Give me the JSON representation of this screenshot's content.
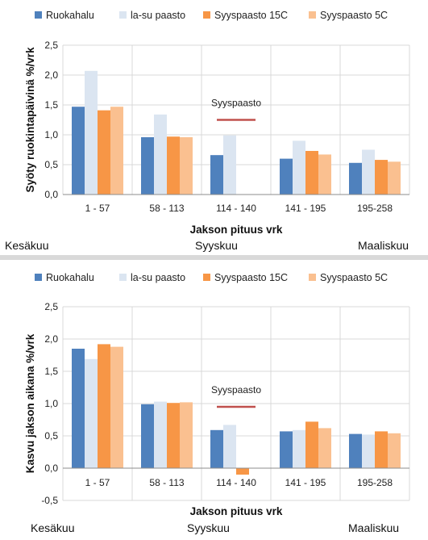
{
  "colors": {
    "Ruokahalu": "#4f81bd",
    "la-su paasto": "#dbe5f1",
    "Syyspaasto 15C": "#f79646",
    "Syyspaasto 5C": "#fac090",
    "annotation_line": "#c0504d",
    "grid": "#d9d9d9"
  },
  "chart_data": [
    {
      "type": "bar",
      "title": "",
      "xlabel": "Jakson pituus vrk",
      "ylabel": "Syöty ruokintapäivinä %/vrk",
      "categories": [
        "1 - 57",
        "58 - 113",
        "114 - 140",
        "141 - 195",
        "195-258"
      ],
      "series": [
        {
          "name": "Ruokahalu",
          "values": [
            1.47,
            0.96,
            0.66,
            0.6,
            0.53
          ]
        },
        {
          "name": "la-su paasto",
          "values": [
            2.07,
            1.34,
            0.99,
            0.9,
            0.75
          ]
        },
        {
          "name": "Syyspaasto 15C",
          "values": [
            1.41,
            0.97,
            null,
            0.73,
            0.58
          ]
        },
        {
          "name": "Syyspaasto 5C",
          "values": [
            1.47,
            0.96,
            null,
            0.67,
            0.55
          ]
        }
      ],
      "ylim": [
        0,
        2.5
      ],
      "yticks": [
        "0,0",
        "0,5",
        "1,0",
        "1,5",
        "2,0",
        "2,5"
      ],
      "grid": true,
      "legend": "top",
      "annotation": {
        "text": "Syyspaasto",
        "category_index": 2,
        "y": 1.25
      },
      "months": [
        "Kesäkuu",
        "Syyskuu",
        "Maaliskuu"
      ]
    },
    {
      "type": "bar",
      "title": "",
      "xlabel": "Jakson pituus vrk",
      "ylabel": "Kasvu jakson aikana %/vrk",
      "categories": [
        "1 - 57",
        "58 - 113",
        "114 - 140",
        "141 - 195",
        "195-258"
      ],
      "series": [
        {
          "name": "Ruokahalu",
          "values": [
            1.85,
            0.99,
            0.59,
            0.57,
            0.53
          ]
        },
        {
          "name": "la-su paasto",
          "values": [
            1.69,
            1.03,
            0.67,
            0.59,
            0.52
          ]
        },
        {
          "name": "Syyspaasto 15C",
          "values": [
            1.92,
            1.01,
            -0.1,
            0.72,
            0.57
          ]
        },
        {
          "name": "Syyspaasto 5C",
          "values": [
            1.88,
            1.02,
            null,
            0.62,
            0.54
          ]
        }
      ],
      "ylim": [
        -0.5,
        2.5
      ],
      "yticks": [
        "-0,5",
        "0,0",
        "0,5",
        "1,0",
        "1,5",
        "2,0",
        "2,5"
      ],
      "grid": true,
      "legend": "top",
      "annotation": {
        "text": "Syyspaasto",
        "category_index": 2,
        "y": 0.95
      },
      "months": [
        "Kesäkuu",
        "Syyskuu",
        "Maaliskuu"
      ]
    }
  ]
}
